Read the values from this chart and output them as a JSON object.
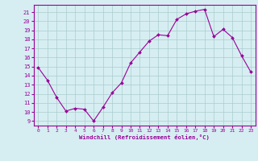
{
  "x": [
    0,
    1,
    2,
    3,
    4,
    5,
    6,
    7,
    8,
    9,
    10,
    11,
    12,
    13,
    14,
    15,
    16,
    17,
    18,
    19,
    20,
    21,
    22,
    23
  ],
  "y": [
    14.9,
    13.5,
    11.6,
    10.1,
    10.4,
    10.3,
    9.0,
    10.5,
    12.1,
    13.2,
    15.4,
    16.6,
    17.8,
    18.5,
    18.4,
    20.2,
    20.8,
    21.1,
    21.3,
    18.3,
    19.1,
    18.2,
    16.2,
    14.4
  ],
  "line_color": "#990099",
  "marker": "D",
  "marker_size": 2,
  "bg_color": "#d6eef2",
  "grid_color": "#aacccc",
  "xlabel": "Windchill (Refroidissement éolien,°C)",
  "xlabel_color": "#990099",
  "tick_color": "#990099",
  "xlim": [
    -0.5,
    23.5
  ],
  "ylim": [
    8.5,
    21.8
  ],
  "yticks": [
    9,
    10,
    11,
    12,
    13,
    14,
    15,
    16,
    17,
    18,
    19,
    20,
    21
  ],
  "xticks": [
    0,
    1,
    2,
    3,
    4,
    5,
    6,
    7,
    8,
    9,
    10,
    11,
    12,
    13,
    14,
    15,
    16,
    17,
    18,
    19,
    20,
    21,
    22,
    23
  ]
}
